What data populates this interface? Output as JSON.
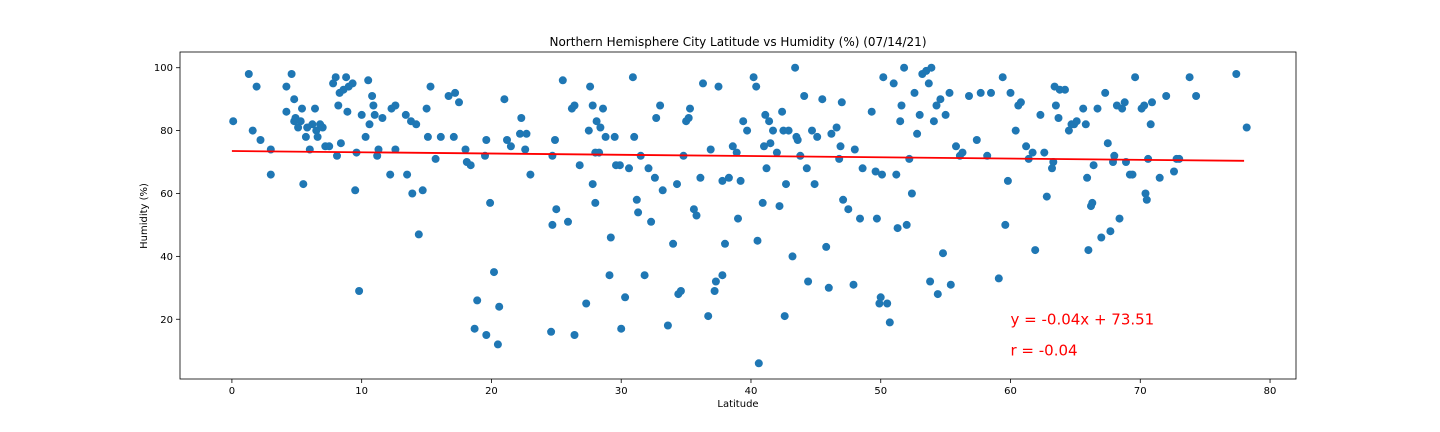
{
  "chart_data": {
    "type": "scatter",
    "title": "Northern Hemisphere City Latitude vs Humidity (%) (07/14/21)",
    "xlabel": "Latitude",
    "ylabel": "Humidity (%)",
    "xlim": [
      -4,
      82
    ],
    "ylim": [
      1,
      105
    ],
    "xticks": [
      0,
      10,
      20,
      30,
      40,
      50,
      60,
      70,
      80
    ],
    "yticks": [
      20,
      40,
      60,
      80,
      100
    ],
    "grid": false,
    "point_color": "#1f77b4",
    "line_color": "#ff0000",
    "regression": {
      "slope": -0.04,
      "intercept": 73.51,
      "x_range": [
        0,
        78
      ],
      "equation_text": "y = -0.04x + 73.51",
      "r_text": "r = -0.04",
      "equation_at": [
        60,
        20
      ],
      "r_at": [
        60,
        10
      ]
    },
    "points": [
      [
        0.1,
        83
      ],
      [
        1.3,
        98
      ],
      [
        1.6,
        80
      ],
      [
        1.9,
        94
      ],
      [
        2.2,
        77
      ],
      [
        3.0,
        74
      ],
      [
        3.0,
        66
      ],
      [
        4.2,
        94
      ],
      [
        4.2,
        86
      ],
      [
        4.6,
        98
      ],
      [
        4.8,
        90
      ],
      [
        4.8,
        83
      ],
      [
        4.9,
        84
      ],
      [
        5.1,
        81
      ],
      [
        5.3,
        83
      ],
      [
        5.4,
        87
      ],
      [
        5.5,
        63
      ],
      [
        5.7,
        78
      ],
      [
        5.8,
        81
      ],
      [
        6.0,
        74
      ],
      [
        6.2,
        82
      ],
      [
        6.4,
        87
      ],
      [
        6.5,
        80
      ],
      [
        6.6,
        78
      ],
      [
        6.8,
        82
      ],
      [
        7.0,
        81
      ],
      [
        7.2,
        75
      ],
      [
        7.5,
        75
      ],
      [
        7.8,
        95
      ],
      [
        8.0,
        97
      ],
      [
        8.1,
        72
      ],
      [
        8.2,
        88
      ],
      [
        8.3,
        92
      ],
      [
        8.4,
        76
      ],
      [
        8.6,
        93
      ],
      [
        8.8,
        97
      ],
      [
        8.9,
        86
      ],
      [
        9.0,
        94
      ],
      [
        9.3,
        95
      ],
      [
        9.5,
        61
      ],
      [
        9.6,
        73
      ],
      [
        9.8,
        29
      ],
      [
        10.0,
        85
      ],
      [
        10.3,
        78
      ],
      [
        10.5,
        96
      ],
      [
        10.6,
        82
      ],
      [
        10.8,
        91
      ],
      [
        10.9,
        88
      ],
      [
        11.0,
        85
      ],
      [
        11.2,
        72
      ],
      [
        11.3,
        74
      ],
      [
        11.6,
        84
      ],
      [
        12.3,
        87
      ],
      [
        12.6,
        88
      ],
      [
        12.2,
        66
      ],
      [
        12.6,
        74
      ],
      [
        13.4,
        85
      ],
      [
        13.5,
        66
      ],
      [
        13.8,
        83
      ],
      [
        13.9,
        60
      ],
      [
        14.2,
        82
      ],
      [
        14.4,
        47
      ],
      [
        14.7,
        61
      ],
      [
        15.0,
        87
      ],
      [
        15.1,
        78
      ],
      [
        15.3,
        94
      ],
      [
        15.7,
        71
      ],
      [
        16.1,
        78
      ],
      [
        16.7,
        91
      ],
      [
        17.1,
        78
      ],
      [
        17.2,
        92
      ],
      [
        17.5,
        89
      ],
      [
        18.0,
        74
      ],
      [
        18.1,
        70
      ],
      [
        18.4,
        69
      ],
      [
        18.7,
        17
      ],
      [
        18.9,
        26
      ],
      [
        19.5,
        72
      ],
      [
        19.6,
        77
      ],
      [
        19.6,
        15
      ],
      [
        19.9,
        57
      ],
      [
        20.2,
        35
      ],
      [
        20.5,
        12
      ],
      [
        20.6,
        24
      ],
      [
        21.0,
        90
      ],
      [
        21.2,
        77
      ],
      [
        21.5,
        75
      ],
      [
        22.2,
        79
      ],
      [
        22.3,
        84
      ],
      [
        22.6,
        74
      ],
      [
        22.7,
        79
      ],
      [
        23.0,
        66
      ],
      [
        24.6,
        16
      ],
      [
        24.7,
        50
      ],
      [
        24.7,
        72
      ],
      [
        24.9,
        77
      ],
      [
        25.0,
        55
      ],
      [
        25.5,
        96
      ],
      [
        25.9,
        51
      ],
      [
        26.2,
        87
      ],
      [
        26.4,
        88
      ],
      [
        26.4,
        15
      ],
      [
        26.8,
        69
      ],
      [
        27.3,
        25
      ],
      [
        27.5,
        80
      ],
      [
        27.6,
        94
      ],
      [
        27.8,
        63
      ],
      [
        27.8,
        88
      ],
      [
        28.0,
        73
      ],
      [
        28.0,
        57
      ],
      [
        28.1,
        83
      ],
      [
        28.3,
        73
      ],
      [
        28.4,
        81
      ],
      [
        28.6,
        87
      ],
      [
        28.8,
        78
      ],
      [
        29.1,
        34
      ],
      [
        29.2,
        46
      ],
      [
        29.5,
        78
      ],
      [
        29.6,
        69
      ],
      [
        29.9,
        69
      ],
      [
        30.0,
        17
      ],
      [
        30.3,
        27
      ],
      [
        30.6,
        68
      ],
      [
        30.9,
        97
      ],
      [
        31.0,
        78
      ],
      [
        31.2,
        58
      ],
      [
        31.3,
        54
      ],
      [
        31.5,
        72
      ],
      [
        31.8,
        34
      ],
      [
        32.1,
        68
      ],
      [
        32.3,
        51
      ],
      [
        32.6,
        65
      ],
      [
        32.7,
        84
      ],
      [
        33.0,
        88
      ],
      [
        33.2,
        61
      ],
      [
        33.6,
        18
      ],
      [
        34.0,
        44
      ],
      [
        34.3,
        63
      ],
      [
        34.4,
        28
      ],
      [
        34.6,
        29
      ],
      [
        34.8,
        72
      ],
      [
        35.0,
        83
      ],
      [
        35.2,
        84
      ],
      [
        35.3,
        87
      ],
      [
        35.6,
        55
      ],
      [
        35.8,
        53
      ],
      [
        36.1,
        65
      ],
      [
        36.3,
        95
      ],
      [
        36.7,
        21
      ],
      [
        36.9,
        74
      ],
      [
        37.2,
        29
      ],
      [
        37.3,
        32
      ],
      [
        37.5,
        94
      ],
      [
        37.8,
        34
      ],
      [
        37.8,
        64
      ],
      [
        38.0,
        44
      ],
      [
        38.3,
        65
      ],
      [
        38.6,
        75
      ],
      [
        38.9,
        73
      ],
      [
        39.0,
        52
      ],
      [
        39.2,
        64
      ],
      [
        39.4,
        83
      ],
      [
        39.7,
        80
      ],
      [
        40.2,
        97
      ],
      [
        40.4,
        94
      ],
      [
        40.5,
        45
      ],
      [
        40.6,
        6
      ],
      [
        40.9,
        57
      ],
      [
        41.0,
        75
      ],
      [
        41.1,
        85
      ],
      [
        41.2,
        68
      ],
      [
        41.4,
        83
      ],
      [
        41.5,
        76
      ],
      [
        41.7,
        80
      ],
      [
        42.0,
        73
      ],
      [
        42.2,
        56
      ],
      [
        42.4,
        86
      ],
      [
        42.5,
        80
      ],
      [
        42.6,
        21
      ],
      [
        42.7,
        63
      ],
      [
        42.9,
        80
      ],
      [
        43.2,
        40
      ],
      [
        43.4,
        100
      ],
      [
        43.5,
        78
      ],
      [
        43.6,
        77
      ],
      [
        43.8,
        72
      ],
      [
        44.1,
        91
      ],
      [
        44.3,
        68
      ],
      [
        44.4,
        32
      ],
      [
        44.7,
        80
      ],
      [
        44.9,
        63
      ],
      [
        45.1,
        78
      ],
      [
        45.5,
        90
      ],
      [
        45.8,
        43
      ],
      [
        46.0,
        30
      ],
      [
        46.2,
        79
      ],
      [
        46.6,
        81
      ],
      [
        46.8,
        71
      ],
      [
        46.9,
        75
      ],
      [
        47.0,
        89
      ],
      [
        47.1,
        58
      ],
      [
        47.5,
        55
      ],
      [
        47.9,
        31
      ],
      [
        48.0,
        74
      ],
      [
        48.4,
        52
      ],
      [
        48.6,
        68
      ],
      [
        49.3,
        86
      ],
      [
        49.6,
        67
      ],
      [
        49.7,
        52
      ],
      [
        49.9,
        25
      ],
      [
        50.0,
        27
      ],
      [
        50.1,
        66
      ],
      [
        50.2,
        97
      ],
      [
        50.5,
        25
      ],
      [
        50.7,
        19
      ],
      [
        51.0,
        95
      ],
      [
        51.2,
        66
      ],
      [
        51.3,
        49
      ],
      [
        51.5,
        83
      ],
      [
        51.6,
        88
      ],
      [
        51.8,
        100
      ],
      [
        52.0,
        50
      ],
      [
        52.2,
        71
      ],
      [
        52.4,
        60
      ],
      [
        52.6,
        92
      ],
      [
        52.8,
        79
      ],
      [
        53.0,
        85
      ],
      [
        53.2,
        98
      ],
      [
        53.5,
        99
      ],
      [
        53.7,
        95
      ],
      [
        53.8,
        32
      ],
      [
        53.9,
        100
      ],
      [
        54.1,
        83
      ],
      [
        54.3,
        88
      ],
      [
        54.4,
        28
      ],
      [
        54.6,
        90
      ],
      [
        54.8,
        41
      ],
      [
        55.0,
        85
      ],
      [
        55.3,
        92
      ],
      [
        55.4,
        31
      ],
      [
        55.8,
        75
      ],
      [
        56.1,
        72
      ],
      [
        56.3,
        73
      ],
      [
        56.8,
        91
      ],
      [
        57.4,
        77
      ],
      [
        57.7,
        92
      ],
      [
        58.2,
        72
      ],
      [
        58.5,
        92
      ],
      [
        59.1,
        33
      ],
      [
        59.4,
        97
      ],
      [
        59.6,
        50
      ],
      [
        59.8,
        64
      ],
      [
        60.0,
        92
      ],
      [
        60.4,
        80
      ],
      [
        60.6,
        88
      ],
      [
        60.8,
        89
      ],
      [
        61.2,
        75
      ],
      [
        61.4,
        71
      ],
      [
        61.7,
        73
      ],
      [
        61.9,
        42
      ],
      [
        62.3,
        85
      ],
      [
        62.6,
        73
      ],
      [
        62.8,
        59
      ],
      [
        63.2,
        68
      ],
      [
        63.3,
        70
      ],
      [
        63.4,
        94
      ],
      [
        63.5,
        88
      ],
      [
        63.7,
        84
      ],
      [
        63.8,
        93
      ],
      [
        64.2,
        93
      ],
      [
        64.5,
        80
      ],
      [
        64.7,
        82
      ],
      [
        64.9,
        82
      ],
      [
        65.1,
        83
      ],
      [
        65.6,
        87
      ],
      [
        65.8,
        82
      ],
      [
        65.9,
        65
      ],
      [
        66.0,
        42
      ],
      [
        66.2,
        56
      ],
      [
        66.3,
        57
      ],
      [
        66.4,
        69
      ],
      [
        66.7,
        87
      ],
      [
        67.0,
        46
      ],
      [
        67.3,
        92
      ],
      [
        67.5,
        76
      ],
      [
        67.7,
        48
      ],
      [
        67.9,
        70
      ],
      [
        68.0,
        72
      ],
      [
        68.2,
        88
      ],
      [
        68.4,
        52
      ],
      [
        68.6,
        87
      ],
      [
        68.8,
        89
      ],
      [
        68.9,
        70
      ],
      [
        69.2,
        66
      ],
      [
        69.4,
        66
      ],
      [
        69.6,
        97
      ],
      [
        70.1,
        87
      ],
      [
        70.3,
        88
      ],
      [
        70.4,
        60
      ],
      [
        70.5,
        58
      ],
      [
        70.6,
        71
      ],
      [
        70.8,
        82
      ],
      [
        70.9,
        89
      ],
      [
        71.5,
        65
      ],
      [
        72.0,
        91
      ],
      [
        72.6,
        67
      ],
      [
        72.8,
        71
      ],
      [
        73.0,
        71
      ],
      [
        73.8,
        97
      ],
      [
        74.3,
        91
      ],
      [
        77.4,
        98
      ],
      [
        78.2,
        81
      ]
    ]
  }
}
